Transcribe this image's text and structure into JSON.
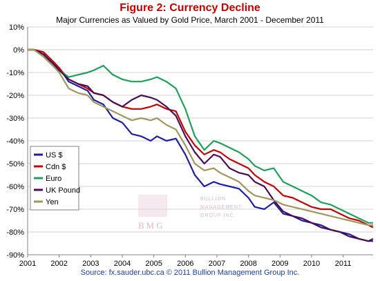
{
  "chart_data": {
    "type": "line",
    "title": "Figure 2: Currency Decline",
    "subtitle": "Major Currencies as Valued by Gold Price, March 2001 - December 2011",
    "source": "Source: fx.sauder.ubc.ca © 2011 Bullion Management Group Inc.",
    "x_ticks": [
      "2001",
      "2002",
      "2003",
      "2004",
      "2005",
      "2006",
      "2007",
      "2008",
      "2009",
      "2010",
      "2011"
    ],
    "y_ticks": [
      "10%",
      "0%",
      "-10%",
      "-20%",
      "-30%",
      "-40%",
      "-50%",
      "-60%",
      "-70%",
      "-80%",
      "-90%"
    ],
    "xlim": [
      2001,
      2011.95
    ],
    "ylim": [
      -90,
      10
    ],
    "grid": "horizontal",
    "legend_position": "left-middle",
    "x": [
      2001.2,
      2001.5,
      2001.8,
      2002.0,
      2002.3,
      2002.6,
      2002.9,
      2003.1,
      2003.4,
      2003.7,
      2004.0,
      2004.3,
      2004.6,
      2004.9,
      2005.1,
      2005.4,
      2005.7,
      2006.0,
      2006.3,
      2006.6,
      2006.9,
      2007.1,
      2007.4,
      2007.7,
      2008.0,
      2008.2,
      2008.5,
      2008.8,
      2009.1,
      2009.4,
      2009.7,
      2010.0,
      2010.3,
      2010.6,
      2010.9,
      2011.2,
      2011.5,
      2011.8,
      2011.95
    ],
    "series": [
      {
        "name": "US $",
        "color": "#1f1f9e",
        "values": [
          0,
          -2,
          -6,
          -8,
          -14,
          -16,
          -18,
          -22,
          -24,
          -30,
          -32,
          -37,
          -38,
          -40,
          -38,
          -40,
          -39,
          -46,
          -55,
          -60,
          -58,
          -59,
          -60,
          -61,
          -65,
          -69,
          -70,
          -67,
          -72,
          -73,
          -75,
          -76,
          -77,
          -79,
          -80,
          -81,
          -83,
          -84,
          -83
        ]
      },
      {
        "name": "Cdn $",
        "color": "#c00000",
        "values": [
          0,
          -1,
          -5,
          -8,
          -13,
          -15,
          -17,
          -19,
          -20,
          -23,
          -25,
          -26,
          -26,
          -25,
          -24,
          -26,
          -27,
          -36,
          -42,
          -46,
          -44,
          -45,
          -48,
          -50,
          -52,
          -55,
          -58,
          -60,
          -64,
          -65,
          -67,
          -69,
          -70,
          -70,
          -72,
          -74,
          -75,
          -77,
          -78
        ]
      },
      {
        "name": "Euro",
        "color": "#1fa05a",
        "values": [
          0,
          -3,
          -7,
          -9,
          -12,
          -11,
          -10,
          -9,
          -7,
          -11,
          -13,
          -14,
          -14,
          -13,
          -12,
          -14,
          -17,
          -26,
          -38,
          -44,
          -40,
          -41,
          -43,
          -45,
          -48,
          -51,
          -53,
          -52,
          -58,
          -60,
          -62,
          -64,
          -67,
          -68,
          -70,
          -72,
          -74,
          -76,
          -76
        ]
      },
      {
        "name": "UK Pound",
        "color": "#4a0d52",
        "values": [
          0,
          -2,
          -6,
          -9,
          -13,
          -15,
          -16,
          -19,
          -20,
          -23,
          -25,
          -22,
          -20,
          -21,
          -22,
          -25,
          -29,
          -38,
          -45,
          -50,
          -46,
          -47,
          -52,
          -54,
          -55,
          -58,
          -60,
          -66,
          -71,
          -73,
          -74,
          -76,
          -78,
          -79,
          -80,
          -82,
          -83,
          -84,
          -84
        ]
      },
      {
        "name": "Yen",
        "color": "#a09660",
        "values": [
          0,
          -3,
          -7,
          -10,
          -17,
          -19,
          -20,
          -23,
          -25,
          -27,
          -29,
          -31,
          -30,
          -31,
          -30,
          -33,
          -35,
          -42,
          -50,
          -53,
          -52,
          -54,
          -56,
          -58,
          -62,
          -64,
          -65,
          -66,
          -68,
          -69,
          -70,
          -71,
          -72,
          -73,
          -74,
          -75,
          -76,
          -77,
          -77
        ]
      }
    ]
  },
  "watermark": {
    "brand_line_1": "BULLION",
    "brand_line_2": "MANAGEMENT",
    "brand_line_3": "GROUP INC.",
    "initials": "BMG",
    "color": "#d9b8cc"
  },
  "colors": {
    "title": "#c00000",
    "source": "#1f3fa0",
    "grid": "#d0d0d0",
    "axis": "#808080"
  }
}
